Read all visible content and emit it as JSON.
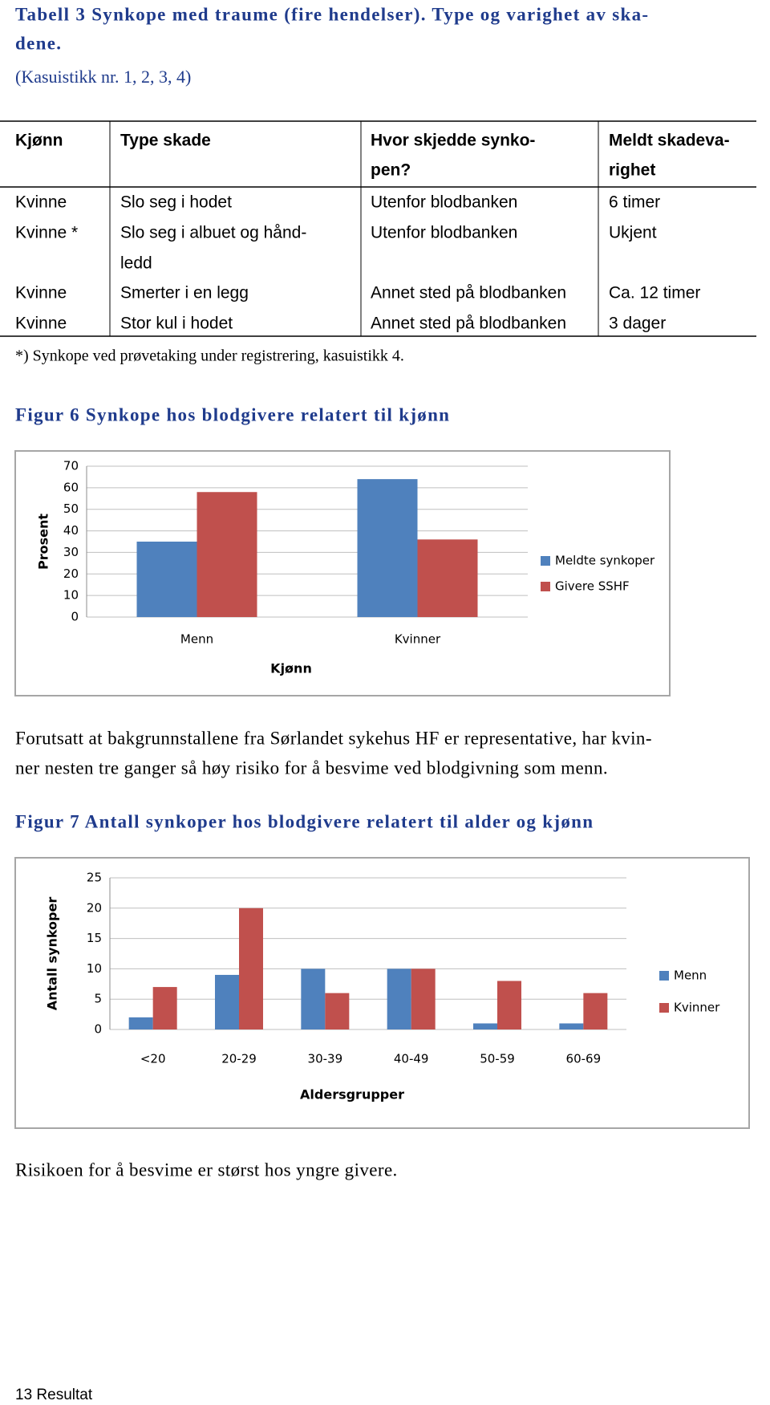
{
  "title": [
    "Tabell 3 Synkope med traume (fire hendelser). Type og varighet av ska-",
    "dene."
  ],
  "subtitle": "(Kasuistikk nr. 1, 2, 3, 4)",
  "table": {
    "header": [
      [
        "Kjønn"
      ],
      [
        "Type skade"
      ],
      [
        "Hvor skjedde synko-",
        "pen?"
      ],
      [
        "Meldt skadeva-",
        "righet"
      ]
    ],
    "rows": [
      [
        [
          "Kvinne"
        ],
        [
          "Slo seg i hodet"
        ],
        [
          "Utenfor blodbanken"
        ],
        [
          "6 timer"
        ]
      ],
      [
        [
          "Kvinne *"
        ],
        [
          "Slo seg i albuet og hånd-",
          "ledd"
        ],
        [
          "Utenfor blodbanken"
        ],
        [
          "Ukjent"
        ]
      ],
      [
        [
          "Kvinne"
        ],
        [
          "Smerter i en legg"
        ],
        [
          "Annet sted på blodbanken"
        ],
        [
          "Ca. 12 timer"
        ]
      ],
      [
        [
          "Kvinne"
        ],
        [
          "Stor kul i hodet"
        ],
        [
          "Annet sted på blodbanken"
        ],
        [
          "3 dager"
        ]
      ]
    ],
    "note": "*) Synkope ved prøvetaking under registrering, kasuistikk 4."
  },
  "figure6_caption": "Figur 6 Synkope hos blodgivere relatert til kjønn",
  "paragraph1": [
    "Forutsatt at bakgrunnstallene fra Sørlandet sykehus HF er representative, har kvin-",
    "ner nesten tre ganger så høy risiko for å besvime ved blodgivning som menn."
  ],
  "figure7_caption": "Figur 7 Antall synkoper hos blodgivere relatert til alder og kjønn",
  "paragraph2": "Risikoen for å besvime er størst hos yngre givere.",
  "footer": "13 Resultat",
  "chart_data": [
    {
      "type": "bar",
      "x_label": "Kjønn",
      "y_label": "Prosent",
      "categories": [
        "Menn",
        "Kvinner"
      ],
      "series": [
        {
          "name": "Meldte synkoper",
          "color": "#4f81bd",
          "values": [
            35,
            64
          ]
        },
        {
          "name": "Givere SSHF",
          "color": "#c0504d",
          "values": [
            58,
            36
          ]
        }
      ],
      "ylim": [
        0,
        70
      ],
      "yticks": [
        0,
        10,
        20,
        30,
        40,
        50,
        60,
        70
      ],
      "grid": true,
      "legend": "right"
    },
    {
      "type": "bar",
      "x_label": "Aldersgrupper",
      "y_label": "Antall synkoper",
      "categories": [
        "<20",
        "20-29",
        "30-39",
        "40-49",
        "50-59",
        "60-69"
      ],
      "series": [
        {
          "name": "Menn",
          "color": "#4f81bd",
          "values": [
            2,
            9,
            10,
            10,
            1,
            1
          ]
        },
        {
          "name": "Kvinner",
          "color": "#c0504d",
          "values": [
            7,
            20,
            6,
            10,
            8,
            6
          ]
        }
      ],
      "ylim": [
        0,
        25
      ],
      "yticks": [
        0,
        5,
        10,
        15,
        20,
        25
      ],
      "grid": true,
      "legend": "right"
    }
  ]
}
